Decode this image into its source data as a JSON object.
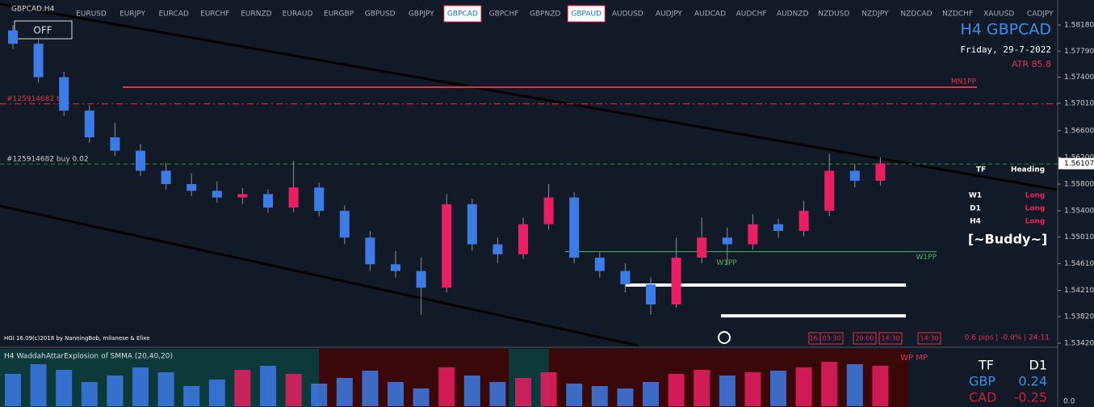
{
  "header": {
    "symbol": "GBPCAD.H4",
    "button": "OFF",
    "title": "H4 GBPCAD",
    "date": "Friday, 29-7-2022",
    "atr": "ATR 85.8",
    "credit": "HGI 16.09(c)2018 by NanningBob, milanese & Elixe",
    "status": "0.6 pips | -0.0% | 24:11"
  },
  "symbols": [
    {
      "label": "EURUSD"
    },
    {
      "label": "EURJPY"
    },
    {
      "label": "EURCAD"
    },
    {
      "label": "EURCHF"
    },
    {
      "label": "EURNZD"
    },
    {
      "label": "EURAUD"
    },
    {
      "label": "EURGBP"
    },
    {
      "label": "GBPUSD"
    },
    {
      "label": "GBPJPY"
    },
    {
      "label": "GBPCAD",
      "active": true
    },
    {
      "label": "GBPCHF"
    },
    {
      "label": "GBPNZD"
    },
    {
      "label": "GBPAUD",
      "active": true
    },
    {
      "label": "AUDUSD"
    },
    {
      "label": "AUDJPY"
    },
    {
      "label": "AUDCAD"
    },
    {
      "label": "AUDCHF"
    },
    {
      "label": "AUDNZD"
    },
    {
      "label": "NZDUSD"
    },
    {
      "label": "NZDJPY"
    },
    {
      "label": "NZDCAD"
    },
    {
      "label": "NZDCHF"
    },
    {
      "label": "XAUUSD"
    },
    {
      "label": "CADJPY"
    }
  ],
  "price_axis": {
    "ylim": [
      1.5342,
      1.5818
    ],
    "ticks": [
      {
        "value": 1.5818,
        "label": "1.58180"
      },
      {
        "value": 1.5779,
        "label": "1.57790"
      },
      {
        "value": 1.574,
        "label": "1.57400"
      },
      {
        "value": 1.5701,
        "label": "1.57010"
      },
      {
        "value": 1.566,
        "label": "1.56600"
      },
      {
        "value": 1.562,
        "label": "1.56200"
      },
      {
        "value": 1.558,
        "label": "1.55800"
      },
      {
        "value": 1.554,
        "label": "1.55400"
      },
      {
        "value": 1.5501,
        "label": "1.55010"
      },
      {
        "value": 1.5461,
        "label": "1.54610"
      },
      {
        "value": 1.5421,
        "label": "1.54210"
      },
      {
        "value": 1.5382,
        "label": "1.53820"
      },
      {
        "value": 1.5342,
        "label": "1.53420"
      }
    ],
    "current": {
      "value": 1.56107,
      "label": "1.56107"
    }
  },
  "levels": [
    {
      "label": "MN1PP",
      "price": 1.5725,
      "color": "#e0304a"
    },
    {
      "label": "#125914682 tp",
      "price": 1.57,
      "color": "#e0304a"
    },
    {
      "label": "#125914682 buy 0.02",
      "price": 1.561,
      "color": "#2e8b3a"
    },
    {
      "label": "W1PP",
      "price": 1.5479,
      "color": "#4caf6a"
    }
  ],
  "support": [
    1.5429,
    1.5383
  ],
  "candles": [
    [
      1.581,
      1.5818,
      1.5782,
      1.579
    ],
    [
      1.579,
      1.5796,
      1.5732,
      1.574
    ],
    [
      1.574,
      1.5748,
      1.5682,
      1.569
    ],
    [
      1.569,
      1.5698,
      1.5642,
      1.565
    ],
    [
      1.565,
      1.5672,
      1.5622,
      1.563
    ],
    [
      1.563,
      1.564,
      1.5592,
      1.56
    ],
    [
      1.56,
      1.5612,
      1.5572,
      1.558
    ],
    [
      1.558,
      1.5596,
      1.5562,
      1.557
    ],
    [
      1.557,
      1.5584,
      1.5552,
      1.556
    ],
    [
      1.556,
      1.5574,
      1.555,
      1.5565
    ],
    [
      1.5565,
      1.5572,
      1.5537,
      1.5545
    ],
    [
      1.5545,
      1.5615,
      1.5538,
      1.5575
    ],
    [
      1.5575,
      1.5582,
      1.5532,
      1.554
    ],
    [
      1.554,
      1.5548,
      1.549,
      1.55
    ],
    [
      1.55,
      1.551,
      1.545,
      1.546
    ],
    [
      1.546,
      1.548,
      1.544,
      1.545
    ],
    [
      1.545,
      1.547,
      1.5385,
      1.5425
    ],
    [
      1.5425,
      1.5565,
      1.5418,
      1.555
    ],
    [
      1.555,
      1.5558,
      1.548,
      1.549
    ],
    [
      1.549,
      1.55,
      1.5462,
      1.5475
    ],
    [
      1.5475,
      1.553,
      1.5468,
      1.552
    ],
    [
      1.552,
      1.558,
      1.5512,
      1.556
    ],
    [
      1.556,
      1.5568,
      1.5462,
      1.547
    ],
    [
      1.547,
      1.5478,
      1.544,
      1.545
    ],
    [
      1.545,
      1.5462,
      1.5418,
      1.543
    ],
    [
      1.543,
      1.544,
      1.5385,
      1.54
    ],
    [
      1.54,
      1.55,
      1.5395,
      1.547
    ],
    [
      1.547,
      1.553,
      1.5462,
      1.55
    ],
    [
      1.55,
      1.5515,
      1.546,
      1.549
    ],
    [
      1.549,
      1.5535,
      1.5482,
      1.552
    ],
    [
      1.552,
      1.5528,
      1.55,
      1.551
    ],
    [
      1.551,
      1.5555,
      1.5502,
      1.554
    ],
    [
      1.554,
      1.5625,
      1.5532,
      1.56
    ],
    [
      1.56,
      1.561,
      1.5575,
      1.5585
    ],
    [
      1.5585,
      1.562,
      1.5578,
      1.5611
    ]
  ],
  "time_boxes": [
    "16:",
    "03:30",
    "20:00",
    "14:30",
    "14:30"
  ],
  "heading": {
    "tf": "TF",
    "title": "Heading",
    "rows": [
      [
        "W1",
        "Long"
      ],
      [
        "D1",
        "Long"
      ],
      [
        "H4",
        "Long"
      ]
    ],
    "name": "[~Buddy~]"
  },
  "indicator": {
    "title": "H4 WaddahAttarExplosion of SMMA (20,40,20)",
    "tag": "WP MP",
    "zero": "0.0",
    "ylim": [
      0,
      60
    ],
    "values": [
      40,
      52,
      45,
      30,
      38,
      48,
      42,
      25,
      33,
      45,
      50,
      40,
      28,
      35,
      44,
      30,
      22,
      48,
      38,
      30,
      35,
      42,
      28,
      25,
      22,
      30,
      40,
      45,
      38,
      42,
      44,
      48,
      55,
      52,
      50
    ]
  },
  "strength": {
    "tf": "TF",
    "period": "D1",
    "rows": [
      [
        "GBP",
        "0.24"
      ],
      [
        "CAD",
        "-0.25"
      ]
    ]
  }
}
